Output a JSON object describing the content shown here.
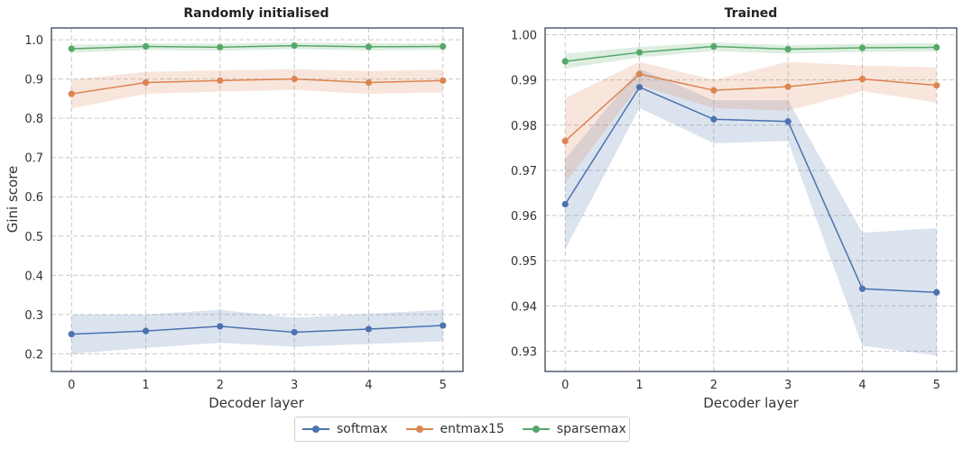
{
  "chart_data": [
    {
      "type": "line",
      "title": "Randomly initialised",
      "xlabel": "Decoder layer",
      "ylabel": "Gini score",
      "x": [
        0,
        1,
        2,
        3,
        4,
        5
      ],
      "xlim": [
        -0.27,
        5.27
      ],
      "ylim": [
        0.155,
        1.03
      ],
      "yticks": [
        "0.2",
        "0.3",
        "0.4",
        "0.5",
        "0.6",
        "0.7",
        "0.8",
        "0.9",
        "1.0"
      ],
      "grid": true,
      "series": [
        {
          "name": "softmax",
          "color": "#4c72b0",
          "values": [
            0.25,
            0.258,
            0.27,
            0.255,
            0.263,
            0.272
          ],
          "band_low": [
            0.2,
            0.215,
            0.228,
            0.218,
            0.225,
            0.232
          ],
          "band_high": [
            0.3,
            0.3,
            0.312,
            0.292,
            0.302,
            0.312
          ]
        },
        {
          "name": "entmax15",
          "color": "#dd8452",
          "values": [
            0.862,
            0.891,
            0.896,
            0.9,
            0.891,
            0.896
          ],
          "band_low": [
            0.825,
            0.862,
            0.868,
            0.872,
            0.862,
            0.866
          ],
          "band_high": [
            0.898,
            0.918,
            0.922,
            0.925,
            0.92,
            0.924
          ]
        },
        {
          "name": "sparsemax",
          "color": "#55a868",
          "values": [
            0.977,
            0.983,
            0.981,
            0.985,
            0.982,
            0.983
          ],
          "band_low": [
            0.967,
            0.974,
            0.972,
            0.976,
            0.973,
            0.974
          ],
          "band_high": [
            0.987,
            0.991,
            0.99,
            0.993,
            0.991,
            0.991
          ]
        }
      ]
    },
    {
      "type": "line",
      "title": "Trained",
      "xlabel": "Decoder layer",
      "ylabel": "",
      "x": [
        0,
        1,
        2,
        3,
        4,
        5
      ],
      "xlim": [
        -0.27,
        5.27
      ],
      "ylim": [
        0.9255,
        1.0015
      ],
      "yticks": [
        "0.93",
        "0.94",
        "0.95",
        "0.96",
        "0.97",
        "0.98",
        "0.99",
        "1.00"
      ],
      "grid": true,
      "series": [
        {
          "name": "softmax",
          "color": "#4c72b0",
          "values": [
            0.9625,
            0.9884,
            0.9813,
            0.9808,
            0.9438,
            0.943
          ],
          "band_low": [
            0.9525,
            0.9838,
            0.976,
            0.9765,
            0.9312,
            0.929
          ],
          "band_high": [
            0.9725,
            0.9925,
            0.9855,
            0.9855,
            0.9562,
            0.9572
          ]
        },
        {
          "name": "entmax15",
          "color": "#dd8452",
          "values": [
            0.9765,
            0.9913,
            0.9877,
            0.9885,
            0.9902,
            0.9888
          ],
          "band_low": [
            0.9672,
            0.9888,
            0.9838,
            0.9832,
            0.9875,
            0.985
          ],
          "band_high": [
            0.986,
            0.994,
            0.99,
            0.994,
            0.9932,
            0.9928
          ]
        },
        {
          "name": "sparsemax",
          "color": "#55a868",
          "values": [
            0.9941,
            0.9961,
            0.9974,
            0.9968,
            0.9971,
            0.9972
          ],
          "band_low": [
            0.9925,
            0.995,
            0.9964,
            0.9958,
            0.9962,
            0.9963
          ],
          "band_high": [
            0.9958,
            0.9973,
            0.9983,
            0.9977,
            0.998,
            0.9981
          ]
        }
      ]
    }
  ],
  "legend": {
    "placement": "bottom-center",
    "items": [
      {
        "label": "softmax",
        "color": "#4c72b0"
      },
      {
        "label": "entmax15",
        "color": "#dd8452"
      },
      {
        "label": "sparsemax",
        "color": "#55a868"
      }
    ]
  }
}
